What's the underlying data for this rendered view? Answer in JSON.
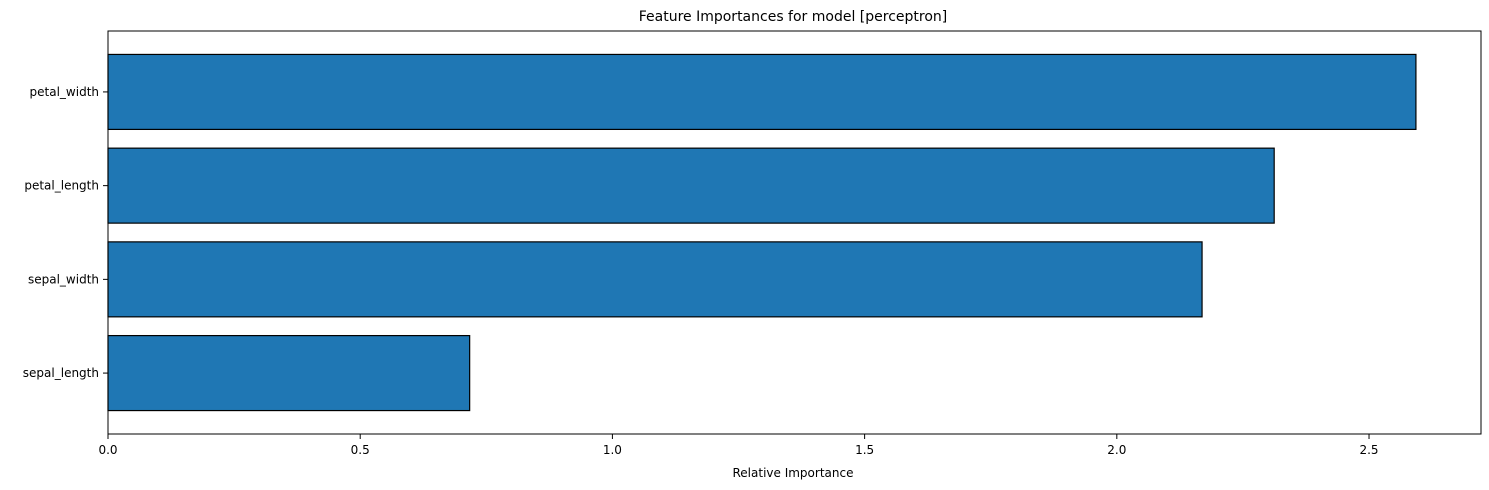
{
  "chart_data": {
    "type": "bar",
    "orientation": "horizontal",
    "title": "Feature Importances for model [perceptron]",
    "xlabel": "Relative Importance",
    "ylabel": "",
    "categories": [
      "sepal_length",
      "sepal_width",
      "petal_length",
      "petal_width"
    ],
    "values": [
      0.717,
      2.169,
      2.312,
      2.593
    ],
    "xlim": [
      0,
      2.722
    ],
    "xticks": [
      0.0,
      0.5,
      1.0,
      1.5,
      2.0,
      2.5
    ],
    "xtick_labels": [
      "0.0",
      "0.5",
      "1.0",
      "1.5",
      "2.0",
      "2.5"
    ],
    "grid": false,
    "legend": "none",
    "colors": {
      "bar_fill": "#1f77b4",
      "bar_edge": "#000000",
      "axes": "#000000"
    }
  }
}
